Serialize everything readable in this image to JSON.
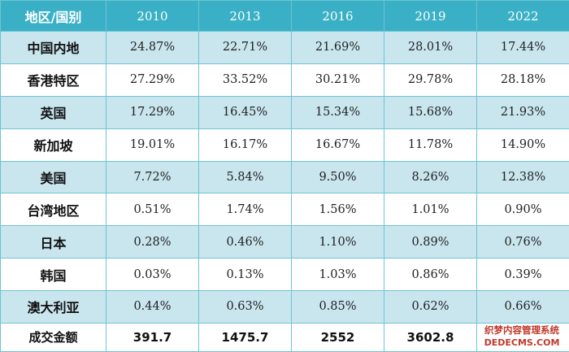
{
  "table": {
    "headers": [
      "地区/国别",
      "2010",
      "2013",
      "2016",
      "2019",
      "2022"
    ],
    "rows": [
      {
        "region": "中国内地",
        "values": [
          "24.87%",
          "22.71%",
          "21.69%",
          "28.01%",
          "17.44%"
        ]
      },
      {
        "region": "香港特区",
        "values": [
          "27.29%",
          "33.52%",
          "30.21%",
          "29.78%",
          "28.18%"
        ]
      },
      {
        "region": "英国",
        "values": [
          "17.29%",
          "16.45%",
          "15.34%",
          "15.68%",
          "21.93%"
        ]
      },
      {
        "region": "新加坡",
        "values": [
          "19.01%",
          "16.17%",
          "16.67%",
          "11.78%",
          "14.90%"
        ]
      },
      {
        "region": "美国",
        "values": [
          "7.72%",
          "5.84%",
          "9.50%",
          "8.26%",
          "12.38%"
        ]
      },
      {
        "region": "台湾地区",
        "values": [
          "0.51%",
          "1.74%",
          "1.56%",
          "1.01%",
          "0.90%"
        ]
      },
      {
        "region": "日本",
        "values": [
          "0.28%",
          "0.46%",
          "1.10%",
          "0.89%",
          "0.76%"
        ]
      },
      {
        "region": "韩国",
        "values": [
          "0.03%",
          "0.13%",
          "1.03%",
          "0.86%",
          "0.39%"
        ]
      },
      {
        "region": "澳大利亚",
        "values": [
          "0.44%",
          "0.63%",
          "0.85%",
          "0.62%",
          "0.66%"
        ]
      }
    ],
    "total_row": {
      "label": "成交金额",
      "values": [
        "391.7",
        "1475.7",
        "2552",
        "3602.8",
        ""
      ]
    }
  },
  "watermark": {
    "line1": "织梦内容管理系统",
    "line2": "DEDECMS.COM"
  },
  "colors": {
    "header_bg": "#3ab0c6",
    "row_shade": "#c9e6ef",
    "border": "#6fc3d2"
  }
}
